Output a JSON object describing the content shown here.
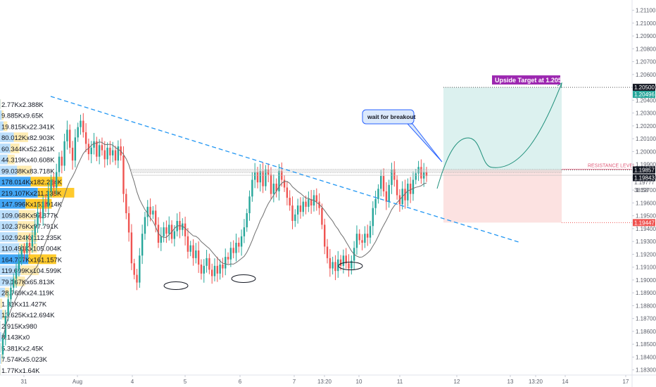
{
  "chart_data": {
    "type": "candlestick",
    "symbol_pair": "EURUSD",
    "y_axis": {
      "ticks": [
        "1.21100",
        "1.21000",
        "1.20900",
        "1.20800",
        "1.20700",
        "1.20600",
        "1.20500",
        "1.20400",
        "1.20300",
        "1.20200",
        "1.20100",
        "1.20000",
        "1.19900",
        "1.19800",
        "1.19700",
        "1.19600",
        "1.19500",
        "1.19400",
        "1.19300",
        "1.19200",
        "1.19100",
        "1.19000",
        "1.18900",
        "1.18800",
        "1.18700",
        "1.18600",
        "1.18500",
        "1.18400",
        "1.18300"
      ],
      "ylim": [
        1.1826,
        1.2118
      ]
    },
    "x_axis": {
      "ticks": [
        "31",
        "Aug",
        "4",
        "5",
        "6",
        "7",
        "13:20",
        "10",
        "11",
        "12",
        "13",
        "13:20",
        "14",
        "17"
      ]
    },
    "price_labels": {
      "target_price": "1.20500",
      "target_sub": "1.20496",
      "resistance_price": "1.19857",
      "current_price": "1.19843",
      "last_price": "1.19777",
      "countdown": "38:58",
      "stop_price": "1.19447"
    },
    "levels": {
      "target": 1.205,
      "resistance": 1.19857,
      "current": 1.19843,
      "stop": 1.19447
    },
    "annotations": {
      "target_label": "Upside Target at 1.2050",
      "callout": "wait for breakout",
      "resistance_label": "RESISTANCE LEVEL"
    },
    "volume_profile": [
      "2.77Kx2.388K",
      "9.885Kx9.65K",
      "19.815Kx22.341K",
      "80.012Kx82.903K",
      "60.344Kx52.261K",
      "44.319Kx40.608K",
      "99.038Kx83.718K",
      "178.014Kx182.264K",
      "219.107Kx211.338K",
      "147.996Kx151.914K",
      "109.068Kx97.877K",
      "102.376Kx97.791K",
      "102.924Kx112.235K",
      "110.491Kx105.004K",
      "164.707Kx161.157K",
      "119.699Kx104.599K",
      "79.167Kx65.813K",
      "28.769Kx24.119K",
      "1.31Kx11.427K",
      "13.625Kx12.694K",
      "2.915Kx980",
      "8.143Kx0",
      "5.381Kx2.45K",
      "7.574Kx5.023K",
      "1.77Kx1.64K"
    ],
    "series": [
      {
        "name": "",
        "type": "candlestick",
        "close": [
          1.1855,
          1.1872,
          1.1885,
          1.1894,
          1.1901,
          1.1908,
          1.1915,
          1.1924,
          1.1921,
          1.1929,
          1.1926,
          1.1935,
          1.1942,
          1.1953,
          1.1948,
          1.1961,
          1.1957,
          1.1969,
          1.1978,
          1.1972,
          1.1984,
          1.1996,
          1.1989,
          1.2008,
          1.2017,
          1.2003,
          1.1993,
          1.2011,
          1.2019,
          1.2024,
          1.2015,
          1.2006,
          1.1998,
          1.2003,
          1.2008,
          1.1996,
          1.2005,
          1.2001,
          1.1994,
          1.2003,
          1.1997,
          1.2001,
          1.1993,
          1.2004,
          1.1997,
          1.1967,
          1.1952,
          1.1937,
          1.1913,
          1.1904,
          1.1898,
          1.1919,
          1.1936,
          1.1949,
          1.1957,
          1.1951,
          1.1954,
          1.1943,
          1.1929,
          1.1934,
          1.1941,
          1.1936,
          1.1943,
          1.1932,
          1.1938,
          1.1946,
          1.1939,
          1.1944,
          1.1934,
          1.1922,
          1.1927,
          1.1917,
          1.1923,
          1.1912,
          1.1905,
          1.1911,
          1.1917,
          1.1908,
          1.1903,
          1.1911,
          1.1905,
          1.1912,
          1.1909,
          1.1918,
          1.1916,
          1.1925,
          1.1921,
          1.1929,
          1.1926,
          1.1934,
          1.1941,
          1.1952,
          1.1965,
          1.1978,
          1.1984,
          1.1976,
          1.1985,
          1.1973,
          1.1986,
          1.1982,
          1.1967,
          1.1975,
          1.1969,
          1.1985,
          1.1978,
          1.1972,
          1.1964,
          1.1958,
          1.1946,
          1.1951,
          1.1958,
          1.1953,
          1.1961,
          1.1957,
          1.1963,
          1.1958,
          1.1966,
          1.1961,
          1.1956,
          1.1943,
          1.1926,
          1.1917,
          1.1909,
          1.1914,
          1.1907,
          1.1916,
          1.1911,
          1.1919,
          1.1913,
          1.1909,
          1.1915,
          1.1925,
          1.1936,
          1.1931,
          1.1929,
          1.1936,
          1.1933,
          1.1942,
          1.1956,
          1.1963,
          1.1971,
          1.1981,
          1.1969,
          1.1961,
          1.1974,
          1.1986,
          1.1978,
          1.1966,
          1.1959,
          1.1971,
          1.1962,
          1.1975,
          1.1967,
          1.1978,
          1.1983,
          1.1988,
          1.1979,
          1.1984,
          1.1981
        ]
      }
    ]
  }
}
